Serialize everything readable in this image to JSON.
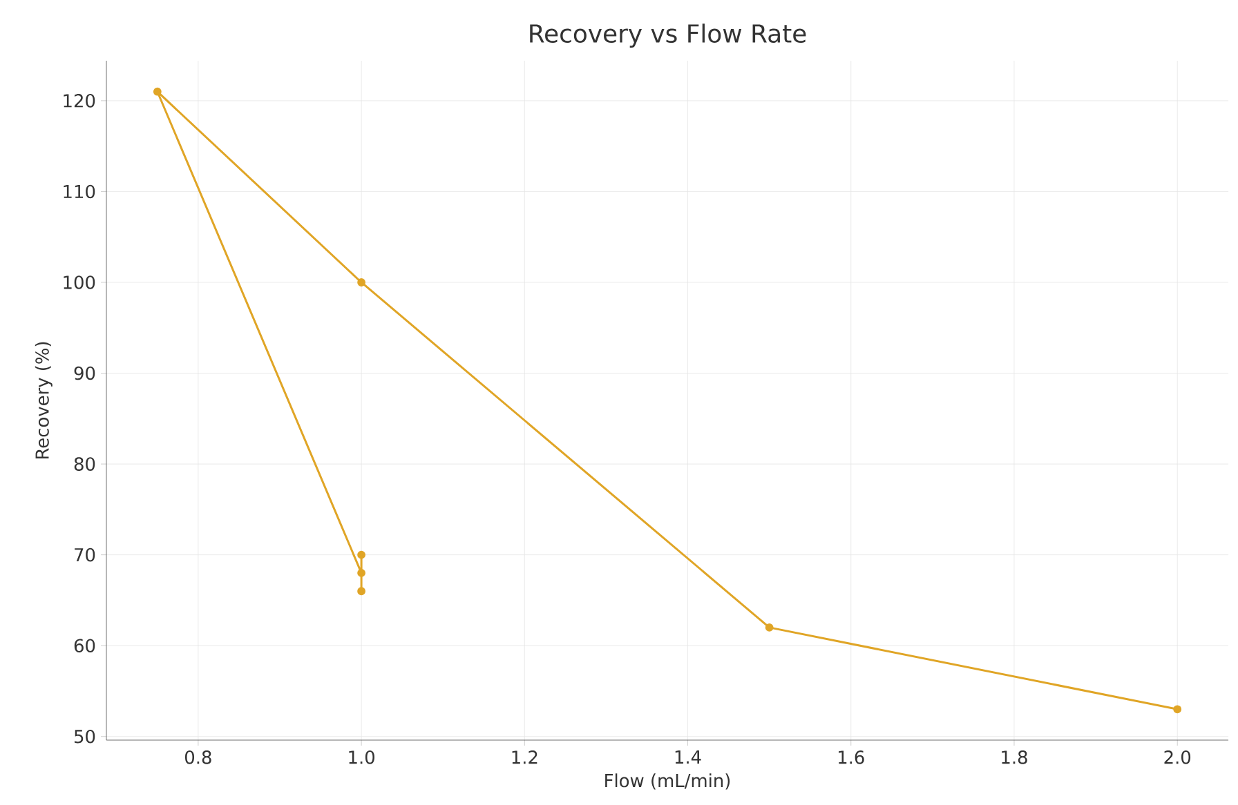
{
  "chart_data": {
    "type": "line",
    "title": "Recovery vs Flow Rate",
    "xlabel": "Flow (mL/min)",
    "ylabel": "Recovery (%)",
    "series": [
      {
        "color": "#e0a526",
        "x": [
          1.0,
          1.0,
          1.0,
          0.75,
          1.0,
          1.5,
          2.0
        ],
        "values": [
          66,
          70,
          68,
          121,
          100,
          62,
          53
        ]
      }
    ],
    "xlim": [
      0.6875,
      2.0625
    ],
    "ylim": [
      49.6,
      124.4
    ],
    "xticks": [
      0.8,
      {
        "value": 1,
        "label": "1.0"
      },
      1.2,
      1.4,
      1.6,
      1.8,
      {
        "value": 2,
        "label": "2.0"
      }
    ],
    "yticks": [
      50,
      60,
      70,
      80,
      90,
      100,
      110,
      120
    ],
    "grid": true,
    "marker": "circle",
    "line_style": "solid"
  }
}
